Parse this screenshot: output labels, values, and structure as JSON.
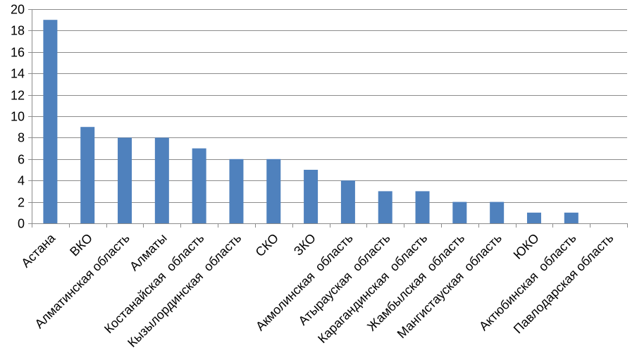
{
  "chart_data": {
    "type": "bar",
    "categories": [
      "Астана",
      "ВКО",
      "Алматинская область",
      "Алматы",
      "Костанайская  область",
      "Кызылординская  область",
      "СКО",
      "ЗКО",
      "Акмолинская  область",
      "Атырауская  область",
      "Карагандинская  область",
      "Жамбылская  область",
      "Мангистауская  область",
      "ЮКО",
      "Актюбинская  область",
      "Павлодарская область"
    ],
    "values": [
      19,
      9,
      8,
      8,
      7,
      6,
      6,
      5,
      4,
      3,
      3,
      2,
      2,
      1,
      1,
      0
    ],
    "ylim": [
      0,
      20
    ],
    "yticks": [
      0,
      2,
      4,
      6,
      8,
      10,
      12,
      14,
      16,
      18,
      20
    ],
    "grid": true,
    "bar_color": "#4f81bd",
    "grid_color": "#8c8c8c"
  }
}
